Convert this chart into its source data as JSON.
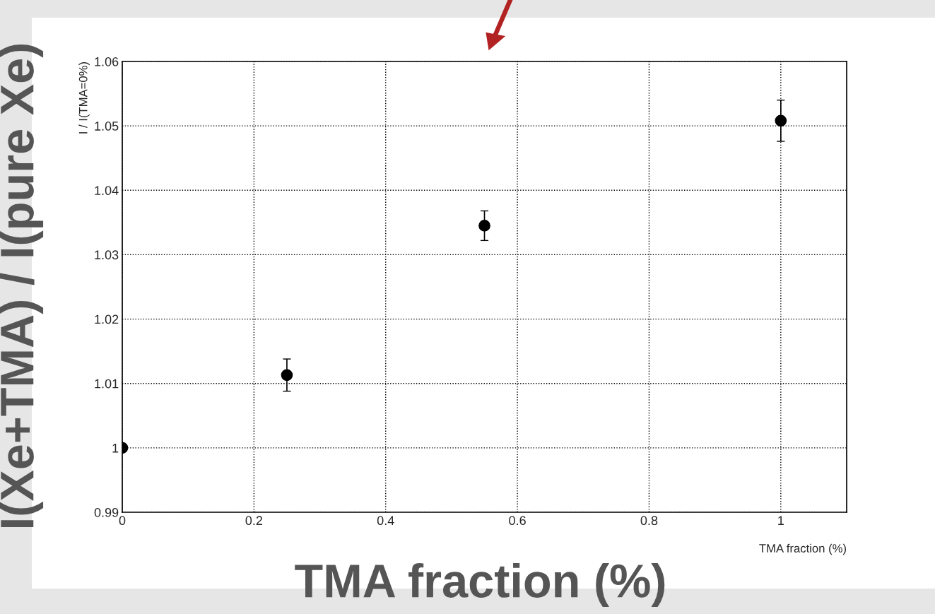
{
  "chart_data": {
    "type": "scatter",
    "xlabel": "TMA fraction (%)",
    "ylabel": "I / I(TMA=0%)",
    "x": [
      0,
      0.25,
      0.55,
      1.0
    ],
    "values": [
      1.0,
      1.0113,
      1.0345,
      1.0508
    ],
    "errors": [
      null,
      0.0025,
      0.0023,
      0.0032
    ],
    "color": "#000000",
    "marker": "circle",
    "xlim": [
      0,
      1.1
    ],
    "xticks": [
      0,
      0.2,
      0.4,
      0.6,
      0.8,
      1
    ],
    "ylim": [
      0.99,
      1.06
    ],
    "yticks": [
      0.99,
      1,
      1.01,
      1.02,
      1.03,
      1.04,
      1.05,
      1.06
    ],
    "grid": true,
    "annotations": [
      "I(Xe+TMA) / I(pure Xe)",
      "TMA fraction (%)"
    ]
  }
}
